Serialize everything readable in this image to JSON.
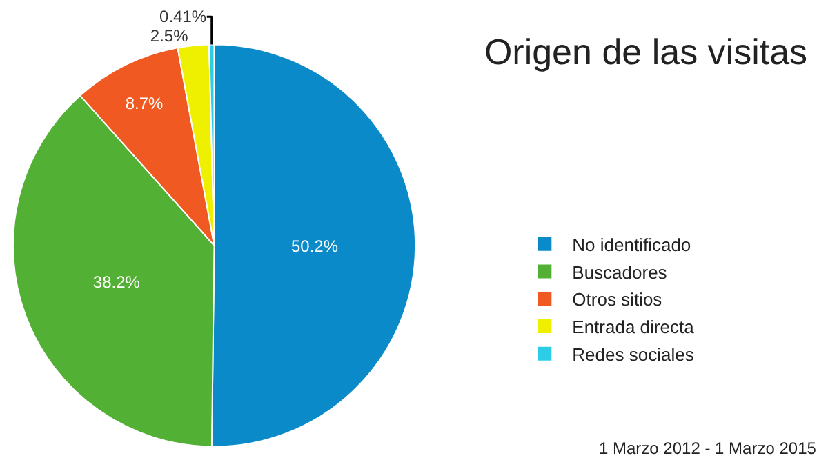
{
  "chart_data": {
    "type": "pie",
    "title": "Origen de las visitas",
    "categories": [
      "No identificado",
      "Buscadores",
      "Otros sitios",
      "Entrada directa",
      "Redes sociales"
    ],
    "values": [
      50.2,
      38.2,
      8.7,
      2.5,
      0.41
    ],
    "value_labels": [
      "50.2%",
      "38.2%",
      "8.7%",
      "2.5%",
      "0.41%"
    ],
    "colors": [
      "#0a8ac8",
      "#52b034",
      "#f05a22",
      "#eef000",
      "#2dcde6"
    ],
    "legend": "right",
    "annotations": [
      "1 Marzo 2012 - 1 Marzo 2015"
    ]
  }
}
